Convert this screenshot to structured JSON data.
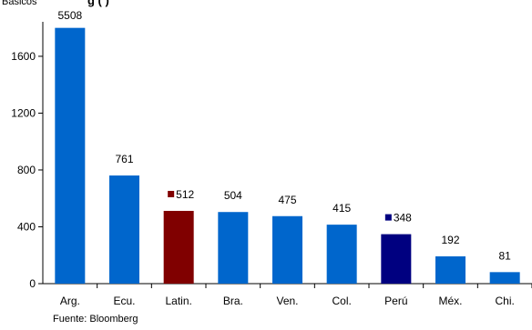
{
  "header": {
    "unit_label": "Básicos",
    "title": "g                              (       )"
  },
  "source": "Fuente: Bloomberg",
  "chart_data": {
    "type": "bar",
    "categories": [
      "Arg.",
      "Ecu.",
      "Latin.",
      "Bra.",
      "Ven.",
      "Col.",
      "Perú",
      "Méx.",
      "Chi."
    ],
    "values": [
      5508,
      761,
      512,
      504,
      475,
      415,
      348,
      192,
      81
    ],
    "value_labels": [
      "5508",
      "761",
      "512",
      "504",
      "475",
      "415",
      "348",
      "192",
      "81"
    ],
    "ylim": [
      0,
      1800
    ],
    "y_display_cap": 1800,
    "yticks": [
      0,
      400,
      800,
      1200,
      1600
    ],
    "ytick_labels": [
      "0",
      "400",
      "800",
      "1200",
      "1600"
    ],
    "grid": false,
    "colors": [
      "#0066CC",
      "#0066CC",
      "#800000",
      "#0066CC",
      "#0066CC",
      "#0066CC",
      "#000080",
      "#0066CC",
      "#0066CC"
    ],
    "label_markers": [
      null,
      null,
      "#800000",
      null,
      null,
      null,
      "#000080",
      null,
      null
    ]
  }
}
